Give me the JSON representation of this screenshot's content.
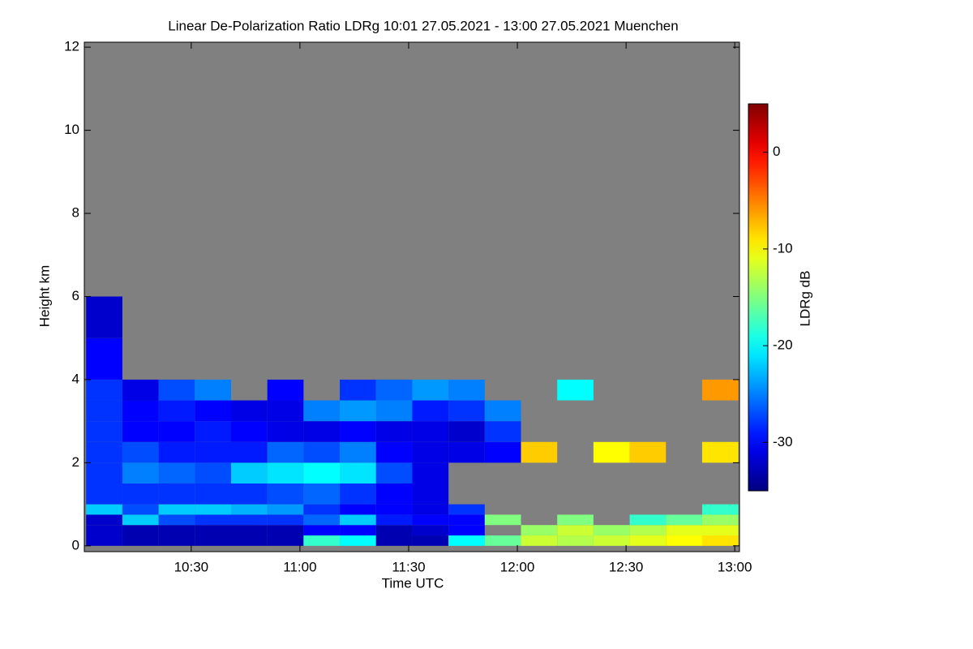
{
  "chart_data": {
    "type": "heatmap",
    "title": "Linear De-Polarization Ratio LDRg   10:01 27.05.2021 - 13:00 27.05.2021 Muenchen",
    "x_label": "Time UTC",
    "y_label": "Height km",
    "colorbar_label": "LDRg dB",
    "colormap": "jet",
    "nodata_color": "#808080",
    "xlim": [
      600.5,
      781.3
    ],
    "ylim": [
      -0.14,
      12.12
    ],
    "clim": [
      -35,
      5
    ],
    "xticks": [
      {
        "value": 630,
        "label": "10:30"
      },
      {
        "value": 660,
        "label": "11:00"
      },
      {
        "value": 690,
        "label": "11:30"
      },
      {
        "value": 720,
        "label": "12:00"
      },
      {
        "value": 750,
        "label": "12:30"
      },
      {
        "value": 780,
        "label": "13:00"
      }
    ],
    "yticks": [
      0,
      2,
      4,
      6,
      8,
      10,
      12
    ],
    "cticks": [
      0,
      -10,
      -20,
      -30
    ],
    "x_bins": [
      601,
      611,
      621,
      631,
      641,
      651,
      661,
      671,
      681,
      691,
      701,
      711,
      721,
      731,
      741,
      751,
      761,
      771,
      781
    ],
    "y_bins": [
      0,
      0.25,
      0.5,
      0.75,
      1,
      1.5,
      2,
      2.5,
      3,
      3.5,
      4,
      5,
      6
    ],
    "values": [
      [
        -32,
        -33,
        -33,
        -33,
        -33,
        -33,
        -18,
        -20,
        -33,
        -33,
        -20,
        -16,
        -12,
        -13,
        -12,
        -11,
        -10,
        -9
      ],
      [
        -32,
        -33,
        -33,
        -33,
        -33,
        -33,
        -30,
        -30,
        -33,
        -32,
        -30,
        null,
        -14,
        -12,
        -14,
        -13,
        -11,
        -11
      ],
      [
        -32,
        -22,
        -27,
        -28,
        -28,
        -28,
        -26,
        -22,
        -29,
        -30,
        -30,
        -15,
        null,
        -15,
        null,
        -18,
        -16,
        -14
      ],
      [
        -22,
        -27,
        -22,
        -22,
        -23,
        -24,
        -28,
        -30,
        -30,
        -31,
        -28,
        null,
        null,
        null,
        null,
        null,
        null,
        -18
      ],
      [
        -28,
        -28,
        -28,
        -28,
        -28,
        -27,
        -26,
        -28,
        -30,
        -31,
        null,
        null,
        null,
        null,
        null,
        null,
        null,
        null
      ],
      [
        -28,
        -25,
        -26,
        -27,
        -22,
        -21,
        -20,
        -21,
        -27,
        -31,
        null,
        null,
        null,
        null,
        null,
        null,
        null,
        null
      ],
      [
        -28,
        -27,
        -29,
        -29,
        -29,
        -26,
        -27,
        -25,
        -30,
        -31,
        -31,
        -30,
        -8,
        null,
        -10,
        -8,
        null,
        -9
      ],
      [
        -28,
        -30,
        -30,
        -29,
        -30,
        -31,
        -31,
        -30,
        -31,
        -31,
        -32,
        -28,
        null,
        null,
        null,
        null,
        null,
        null
      ],
      [
        -28,
        -30,
        -29,
        -30,
        -31,
        -31,
        -25,
        -24,
        -25,
        -29,
        -28,
        -25,
        null,
        null,
        null,
        null,
        null,
        null
      ],
      [
        -28,
        -31,
        -27,
        -25,
        null,
        -30,
        null,
        -28,
        -26,
        -24,
        -25,
        null,
        null,
        -20,
        null,
        null,
        null,
        -6
      ],
      [
        -30,
        null,
        null,
        null,
        null,
        null,
        null,
        null,
        null,
        null,
        null,
        null,
        null,
        null,
        null,
        null,
        null,
        null
      ],
      [
        -32,
        null,
        null,
        null,
        null,
        null,
        null,
        null,
        null,
        null,
        null,
        null,
        null,
        null,
        null,
        null,
        null,
        null
      ]
    ]
  }
}
